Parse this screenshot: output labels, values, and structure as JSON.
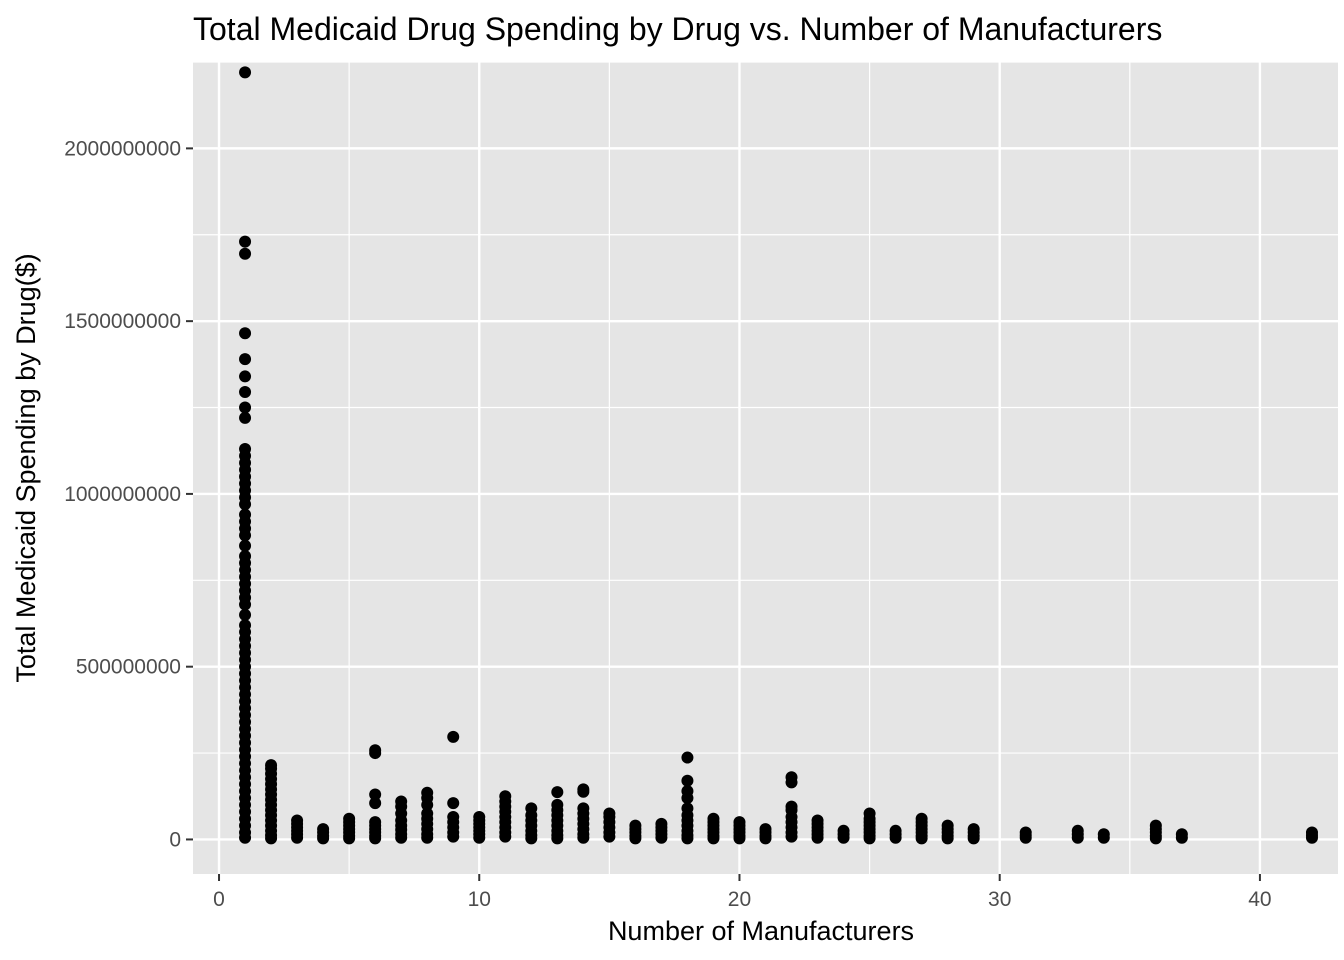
{
  "chart_data": {
    "type": "scatter",
    "title": "Total Medicaid Drug Spending by Drug vs. Number of Manufacturers",
    "xlabel": "Number of Manufacturers",
    "ylabel": "Total Medicaid Spending by Drug($)",
    "xlim": [
      -1,
      43
    ],
    "ylim": [
      -100000000,
      2250000000
    ],
    "x_ticks": [
      0,
      10,
      20,
      30,
      40
    ],
    "x_tick_labels": [
      "0",
      "10",
      "20",
      "30",
      "40"
    ],
    "y_ticks": [
      0,
      500000000,
      1000000000,
      1500000000,
      2000000000
    ],
    "y_tick_labels": [
      "0",
      "500000000",
      "1000000000",
      "1500000000",
      "2000000000"
    ],
    "grid": true,
    "panel_color": "#e5e5e5",
    "grid_color": "#ffffff",
    "point_color": "#000000",
    "points": [
      {
        "x": 1,
        "y": [
          2220000000,
          1730000000,
          1695000000,
          1465000000,
          1390000000,
          1340000000,
          1295000000,
          1250000000,
          1220000000,
          1130000000,
          1110000000,
          1090000000,
          1070000000,
          1050000000,
          1030000000,
          1010000000,
          990000000,
          970000000,
          940000000,
          920000000,
          900000000,
          880000000,
          850000000,
          820000000,
          800000000,
          780000000,
          760000000,
          740000000,
          720000000,
          700000000,
          680000000,
          650000000,
          620000000,
          600000000,
          580000000,
          560000000,
          540000000,
          520000000,
          500000000,
          480000000,
          460000000,
          440000000,
          420000000,
          400000000,
          380000000,
          360000000,
          340000000,
          320000000,
          300000000,
          280000000,
          260000000,
          240000000,
          220000000,
          200000000,
          180000000,
          160000000,
          140000000,
          120000000,
          100000000,
          80000000,
          60000000,
          40000000,
          20000000,
          5000000
        ]
      },
      {
        "x": 2,
        "y": [
          215000000,
          205000000,
          190000000,
          175000000,
          160000000,
          145000000,
          130000000,
          115000000,
          100000000,
          85000000,
          70000000,
          55000000,
          40000000,
          25000000,
          12000000,
          3000000
        ]
      },
      {
        "x": 3,
        "y": [
          55000000,
          45000000,
          35000000,
          25000000,
          15000000,
          5000000
        ]
      },
      {
        "x": 4,
        "y": [
          30000000,
          20000000,
          10000000,
          3000000
        ]
      },
      {
        "x": 5,
        "y": [
          60000000,
          50000000,
          40000000,
          30000000,
          20000000,
          10000000,
          3000000
        ]
      },
      {
        "x": 6,
        "y": [
          258000000,
          250000000,
          130000000,
          105000000,
          50000000,
          40000000,
          30000000,
          20000000,
          10000000,
          3000000
        ]
      },
      {
        "x": 7,
        "y": [
          110000000,
          95000000,
          75000000,
          55000000,
          40000000,
          28000000,
          15000000,
          5000000
        ]
      },
      {
        "x": 8,
        "y": [
          135000000,
          120000000,
          100000000,
          75000000,
          60000000,
          45000000,
          30000000,
          15000000,
          5000000
        ]
      },
      {
        "x": 9,
        "y": [
          297000000,
          105000000,
          65000000,
          50000000,
          35000000,
          20000000,
          8000000
        ]
      },
      {
        "x": 10,
        "y": [
          65000000,
          55000000,
          45000000,
          35000000,
          25000000,
          15000000,
          5000000
        ]
      },
      {
        "x": 11,
        "y": [
          125000000,
          110000000,
          95000000,
          80000000,
          65000000,
          50000000,
          35000000,
          20000000,
          8000000
        ]
      },
      {
        "x": 12,
        "y": [
          90000000,
          70000000,
          55000000,
          40000000,
          25000000,
          12000000,
          3000000
        ]
      },
      {
        "x": 13,
        "y": [
          137000000,
          100000000,
          85000000,
          70000000,
          55000000,
          40000000,
          25000000,
          12000000,
          3000000
        ]
      },
      {
        "x": 14,
        "y": [
          145000000,
          138000000,
          90000000,
          75000000,
          60000000,
          45000000,
          30000000,
          15000000,
          5000000
        ]
      },
      {
        "x": 15,
        "y": [
          75000000,
          65000000,
          50000000,
          35000000,
          20000000,
          8000000
        ]
      },
      {
        "x": 16,
        "y": [
          40000000,
          30000000,
          20000000,
          10000000,
          3000000
        ]
      },
      {
        "x": 17,
        "y": [
          45000000,
          35000000,
          25000000,
          15000000,
          5000000
        ]
      },
      {
        "x": 18,
        "y": [
          237000000,
          170000000,
          140000000,
          120000000,
          90000000,
          70000000,
          55000000,
          40000000,
          25000000,
          12000000,
          3000000
        ]
      },
      {
        "x": 19,
        "y": [
          60000000,
          50000000,
          40000000,
          30000000,
          20000000,
          10000000,
          3000000
        ]
      },
      {
        "x": 20,
        "y": [
          50000000,
          40000000,
          30000000,
          20000000,
          10000000,
          3000000
        ]
      },
      {
        "x": 21,
        "y": [
          30000000,
          20000000,
          10000000,
          3000000
        ]
      },
      {
        "x": 22,
        "y": [
          180000000,
          165000000,
          95000000,
          85000000,
          65000000,
          50000000,
          35000000,
          20000000,
          8000000
        ]
      },
      {
        "x": 23,
        "y": [
          55000000,
          45000000,
          35000000,
          25000000,
          15000000,
          5000000
        ]
      },
      {
        "x": 24,
        "y": [
          25000000,
          15000000,
          5000000
        ]
      },
      {
        "x": 25,
        "y": [
          75000000,
          60000000,
          50000000,
          40000000,
          30000000,
          20000000,
          10000000,
          3000000
        ]
      },
      {
        "x": 26,
        "y": [
          25000000,
          15000000,
          5000000
        ]
      },
      {
        "x": 27,
        "y": [
          60000000,
          50000000,
          40000000,
          30000000,
          20000000,
          10000000,
          3000000
        ]
      },
      {
        "x": 28,
        "y": [
          40000000,
          30000000,
          20000000,
          10000000,
          3000000
        ]
      },
      {
        "x": 29,
        "y": [
          30000000,
          20000000,
          10000000,
          3000000
        ]
      },
      {
        "x": 31,
        "y": [
          20000000,
          12000000,
          5000000
        ]
      },
      {
        "x": 33,
        "y": [
          25000000,
          15000000,
          5000000
        ]
      },
      {
        "x": 34,
        "y": [
          15000000,
          5000000
        ]
      },
      {
        "x": 36,
        "y": [
          40000000,
          30000000,
          20000000,
          10000000,
          3000000
        ]
      },
      {
        "x": 37,
        "y": [
          15000000,
          5000000
        ]
      },
      {
        "x": 42,
        "y": [
          20000000,
          12000000,
          5000000
        ]
      }
    ]
  }
}
